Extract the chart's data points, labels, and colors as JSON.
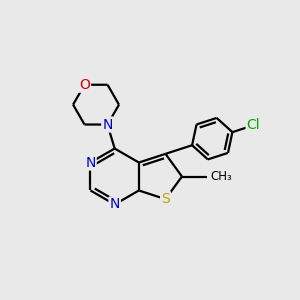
{
  "background_color": "#e9e9e9",
  "bond_color": "#000000",
  "figsize": [
    3.0,
    3.0
  ],
  "dpi": 100,
  "S_color": "#b8a800",
  "N_color": "#0000cc",
  "O_color": "#cc0000",
  "Cl_color": "#00aa00",
  "lw": 1.6,
  "xlim": [
    0,
    10
  ],
  "ylim": [
    0,
    10
  ]
}
